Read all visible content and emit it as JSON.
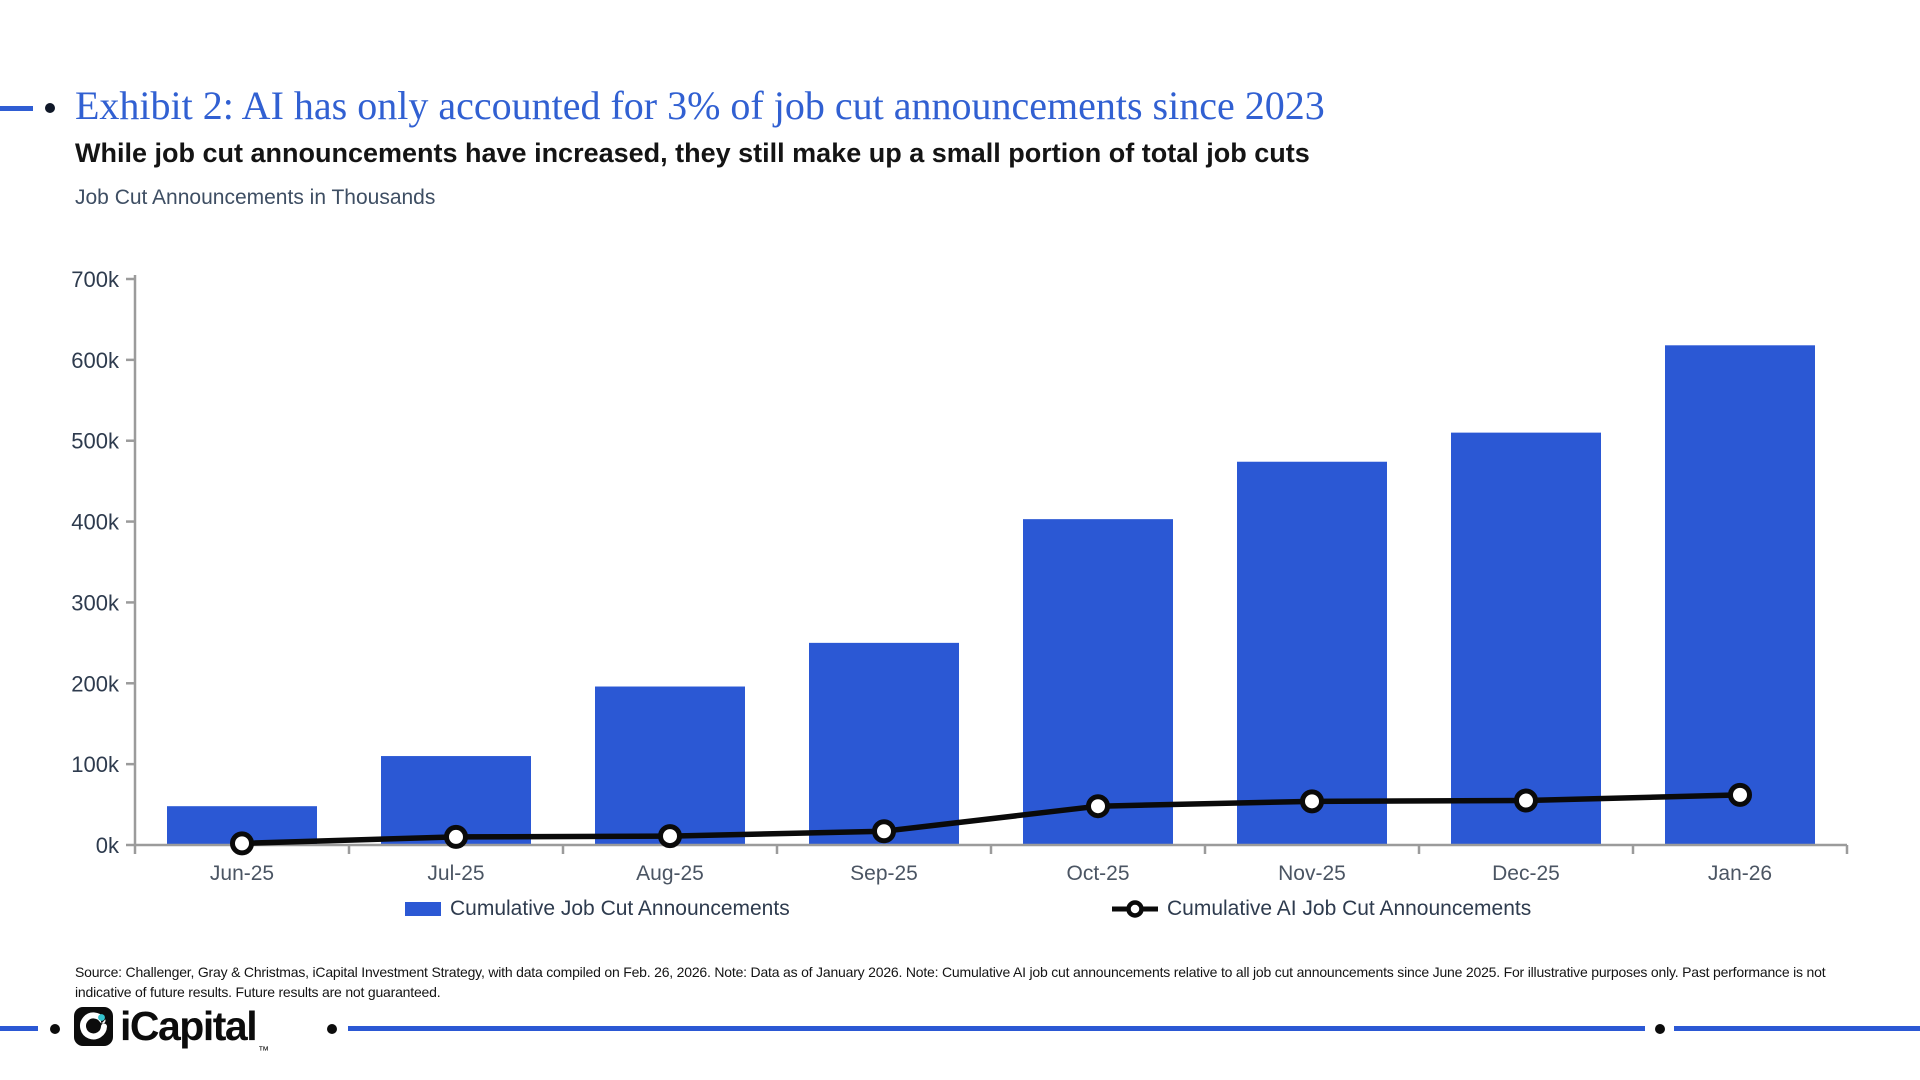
{
  "slide": {
    "title": "Exhibit 2: AI has only accounted for 3% of job cut announcements since 2023",
    "subtitle": "While job cut announcements have increased, they still make up a small portion of total job cuts",
    "axis_note": "Job Cut Announcements in Thousands",
    "source_note": "Source: Challenger, Gray & Christmas, iCapital Investment Strategy, with data compiled on Feb. 26, 2026. Note: Data as of January 2026. Note: Cumulative AI job cut announcements relative to all job cut announcements since June 2025. For illustrative purposes only. Past performance is not indicative of future results. Future results are not guaranteed.",
    "logo_text": "iCapital",
    "logo_tm": "™"
  },
  "colors": {
    "bar_blue": "#2b58d4",
    "title_blue": "#3160d2",
    "line_black": "#0a0a0a",
    "axis_gray": "#9b9b9b",
    "ytick_text": "#2e3b4e",
    "xtick_text": "#4b5563",
    "logo_teal": "#35c4cf"
  },
  "chart_data": {
    "type": "bar",
    "categories": [
      "Jun-25",
      "Jul-25",
      "Aug-25",
      "Sep-25",
      "Oct-25",
      "Nov-25",
      "Dec-25",
      "Jan-26"
    ],
    "series": [
      {
        "name": "Cumulative Job Cut Announcements",
        "type": "bar",
        "color": "#2b58d4",
        "values": [
          48,
          110,
          196,
          250,
          403,
          474,
          510,
          618
        ]
      },
      {
        "name": "Cumulative AI Job Cut Announcements",
        "type": "line",
        "color": "#0a0a0a",
        "marker": "open-circle",
        "values": [
          2,
          10,
          11,
          17,
          48,
          54,
          55,
          62
        ]
      }
    ],
    "title": "Job Cut Announcements in Thousands",
    "xlabel": "",
    "ylabel": "Job Cut Announcements in Thousands",
    "ylim": [
      0,
      700
    ],
    "ytick_step": 100,
    "ytick_suffix": "k",
    "grid": false,
    "legend_position": "bottom"
  }
}
